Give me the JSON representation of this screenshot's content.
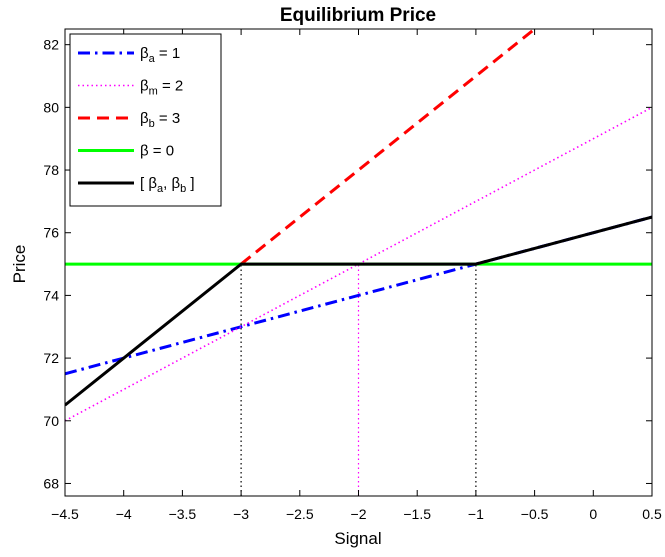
{
  "chart_data": {
    "type": "line",
    "title": "Equilibrium Price",
    "xlabel": "Signal",
    "ylabel": "Price",
    "xlim": [
      -4.5,
      0.5
    ],
    "ylim": [
      67.6,
      82.5
    ],
    "grid": false,
    "legend_position": "top-left",
    "x_ticks": [
      -4.5,
      -4,
      -3.5,
      -3,
      -2.5,
      -2,
      -1.5,
      -1,
      -0.5,
      0,
      0.5
    ],
    "x_tick_labels": [
      "−4.5",
      "−4",
      "−3.5",
      "−3",
      "−2.5",
      "−2",
      "−1.5",
      "−1",
      "−0.5",
      "0",
      "0.5"
    ],
    "y_ticks": [
      68,
      70,
      72,
      74,
      76,
      78,
      80,
      82
    ],
    "y_tick_labels": [
      "68",
      "70",
      "72",
      "74",
      "76",
      "78",
      "80",
      "82"
    ],
    "series": [
      {
        "base": "β",
        "sub": "a",
        "value": "1",
        "color": "#0000ff",
        "dash": "dashdot",
        "x": [
          -4.5,
          0.5
        ],
        "y": [
          71.5,
          76.5
        ]
      },
      {
        "base": "β",
        "sub": "m",
        "value": "2",
        "color": "#ff00ff",
        "dash": "dotted",
        "x": [
          -4.5,
          0.5
        ],
        "y": [
          70,
          80
        ]
      },
      {
        "base": "β",
        "sub": "b",
        "value": "3",
        "color": "#ff0000",
        "dash": "dashed",
        "x": [
          -3,
          0.5
        ],
        "y": [
          75,
          85.5
        ]
      },
      {
        "base": "β",
        "sub": "",
        "value": "0",
        "color": "#00ff00",
        "dash": "solid",
        "x": [
          -4.5,
          0.5
        ],
        "y": [
          75,
          75
        ]
      },
      {
        "label_parts": [
          "[ ",
          "β",
          "a",
          ", ",
          "β",
          "b",
          " ]"
        ],
        "color": "#000000",
        "dash": "solid",
        "x": [
          -4.5,
          -3,
          -1,
          0.5
        ],
        "y": [
          70.5,
          75,
          75,
          76.5
        ]
      }
    ],
    "reference_lines": [
      {
        "x": -3,
        "y_to": 75,
        "color": "#000000",
        "dash": "dotted"
      },
      {
        "x": -2,
        "y_to": 75,
        "color": "#ff00ff",
        "dash": "dotted"
      },
      {
        "x": -1,
        "y_to": 75,
        "color": "#000000",
        "dash": "dotted"
      }
    ]
  }
}
